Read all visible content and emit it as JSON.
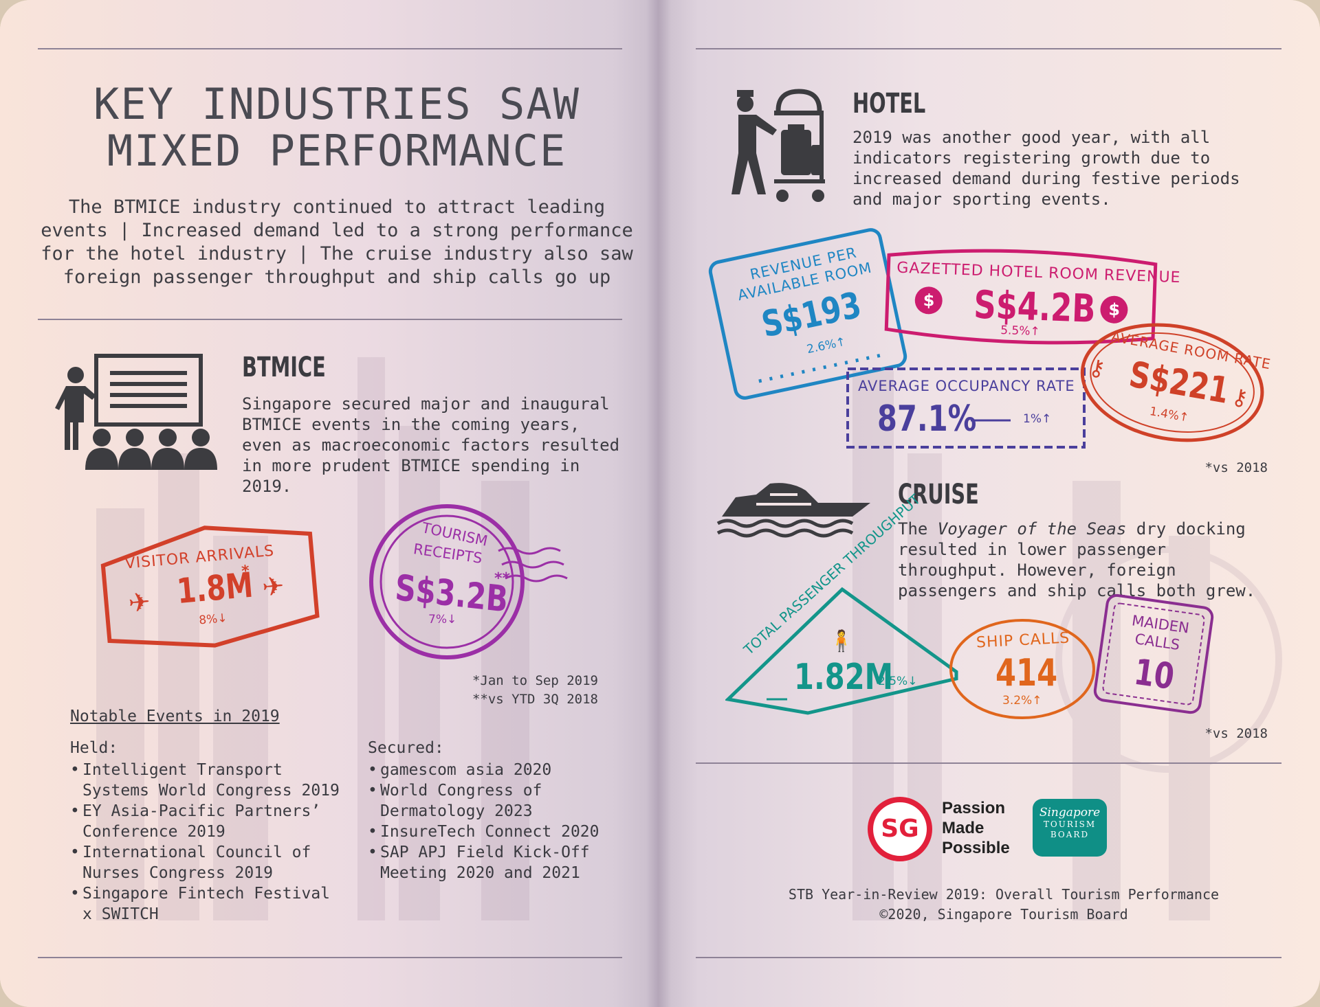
{
  "left": {
    "title_line1": "KEY INDUSTRIES SAW",
    "title_line2": "MIXED PERFORMANCE",
    "intro": "The BTMICE industry continued to attract leading events | Increased demand led to a strong performance for the hotel industry | The cruise industry also saw foreign passenger throughput and ship calls go up",
    "btmice": {
      "heading": "BTMICE",
      "body": "Singapore secured major and inaugural BTMICE events in the coming years, even as macroeconomic factors resulted in more prudent BTMICE spending in 2019."
    },
    "stamps": {
      "visitor_label": "VISITOR ARRIVALS",
      "visitor_value": "1.8M",
      "visitor_mark": "*",
      "visitor_change": "8%↓",
      "receipts_label1": "TOURISM",
      "receipts_label2": "RECEIPTS",
      "receipts_value": "S$3.2B",
      "receipts_mark": "**",
      "receipts_change": "7%↓"
    },
    "notes": {
      "n1": "*Jan to Sep 2019",
      "n2": "**vs YTD 3Q 2018"
    },
    "events": {
      "title": "Notable Events in 2019",
      "held_title": "Held:",
      "held": [
        "Intelligent Transport Systems World Congress 2019",
        "EY Asia-Pacific Partners’ Conference 2019",
        "International Council of Nurses Congress 2019",
        "Singapore Fintech Festival x SWITCH"
      ],
      "secured_title": "Secured:",
      "secured": [
        "gamescom asia 2020",
        "World Congress of Dermatology 2023",
        "InsureTech Connect 2020",
        "SAP APJ Field Kick-Off Meeting 2020 and 2021"
      ]
    }
  },
  "right": {
    "hotel": {
      "heading": "HOTEL",
      "body": "2019 was another good year, with all indicators registering growth due to increased demand during festive periods and major sporting events.",
      "revpar_label1": "REVENUE PER",
      "revpar_label2": "AVAILABLE ROOM",
      "revpar_value": "S$193",
      "revpar_change": "2.6%↑",
      "grr_label": "GAZETTED HOTEL ROOM REVENUE",
      "grr_value": "S$4.2B",
      "grr_change": "5.5%↑",
      "occ_label": "AVERAGE OCCUPANCY RATE",
      "occ_value": "87.1%",
      "occ_change": "1%↑",
      "arr_label": "AVERAGE ROOM RATE",
      "arr_value": "S$221",
      "arr_change": "1.4%↑",
      "note": "*vs 2018"
    },
    "cruise": {
      "heading": "CRUISE",
      "body_pre": "The ",
      "body_italic": "Voyager of the Seas",
      "body_post": " dry docking resulted in lower passenger throughput. However, foreign passengers and ship calls both grew.",
      "tpt_label": "TOTAL PASSENGER THROUGHPUT",
      "tpt_value": "1.82M",
      "tpt_change": "2.5%↓",
      "ship_label": "SHIP CALLS",
      "ship_value": "414",
      "ship_change": "3.2%↑",
      "maiden_label1": "MAIDEN",
      "maiden_label2": "CALLS",
      "maiden_value": "10",
      "note": "*vs 2018"
    },
    "footer": {
      "sg_mark": "SG",
      "tagline1": "Passion",
      "tagline2": "Made",
      "tagline3": "Possible",
      "stb1": "Singapore",
      "stb2": "TOURISM",
      "stb3": "BOARD",
      "line1": "STB Year-in-Review 2019: Overall Tourism Performance",
      "line2": "©2020, Singapore Tourism Board"
    }
  },
  "colors": {
    "red": "#d2402a",
    "purple": "#9b2fa6",
    "blue": "#1f86c3",
    "magenta": "#cc1c6f",
    "indigo": "#4a3f9c",
    "orange_red": "#cf4128",
    "teal": "#13958a",
    "orange": "#e0661d",
    "violet": "#8a2e90",
    "icon": "#3c3c40"
  }
}
